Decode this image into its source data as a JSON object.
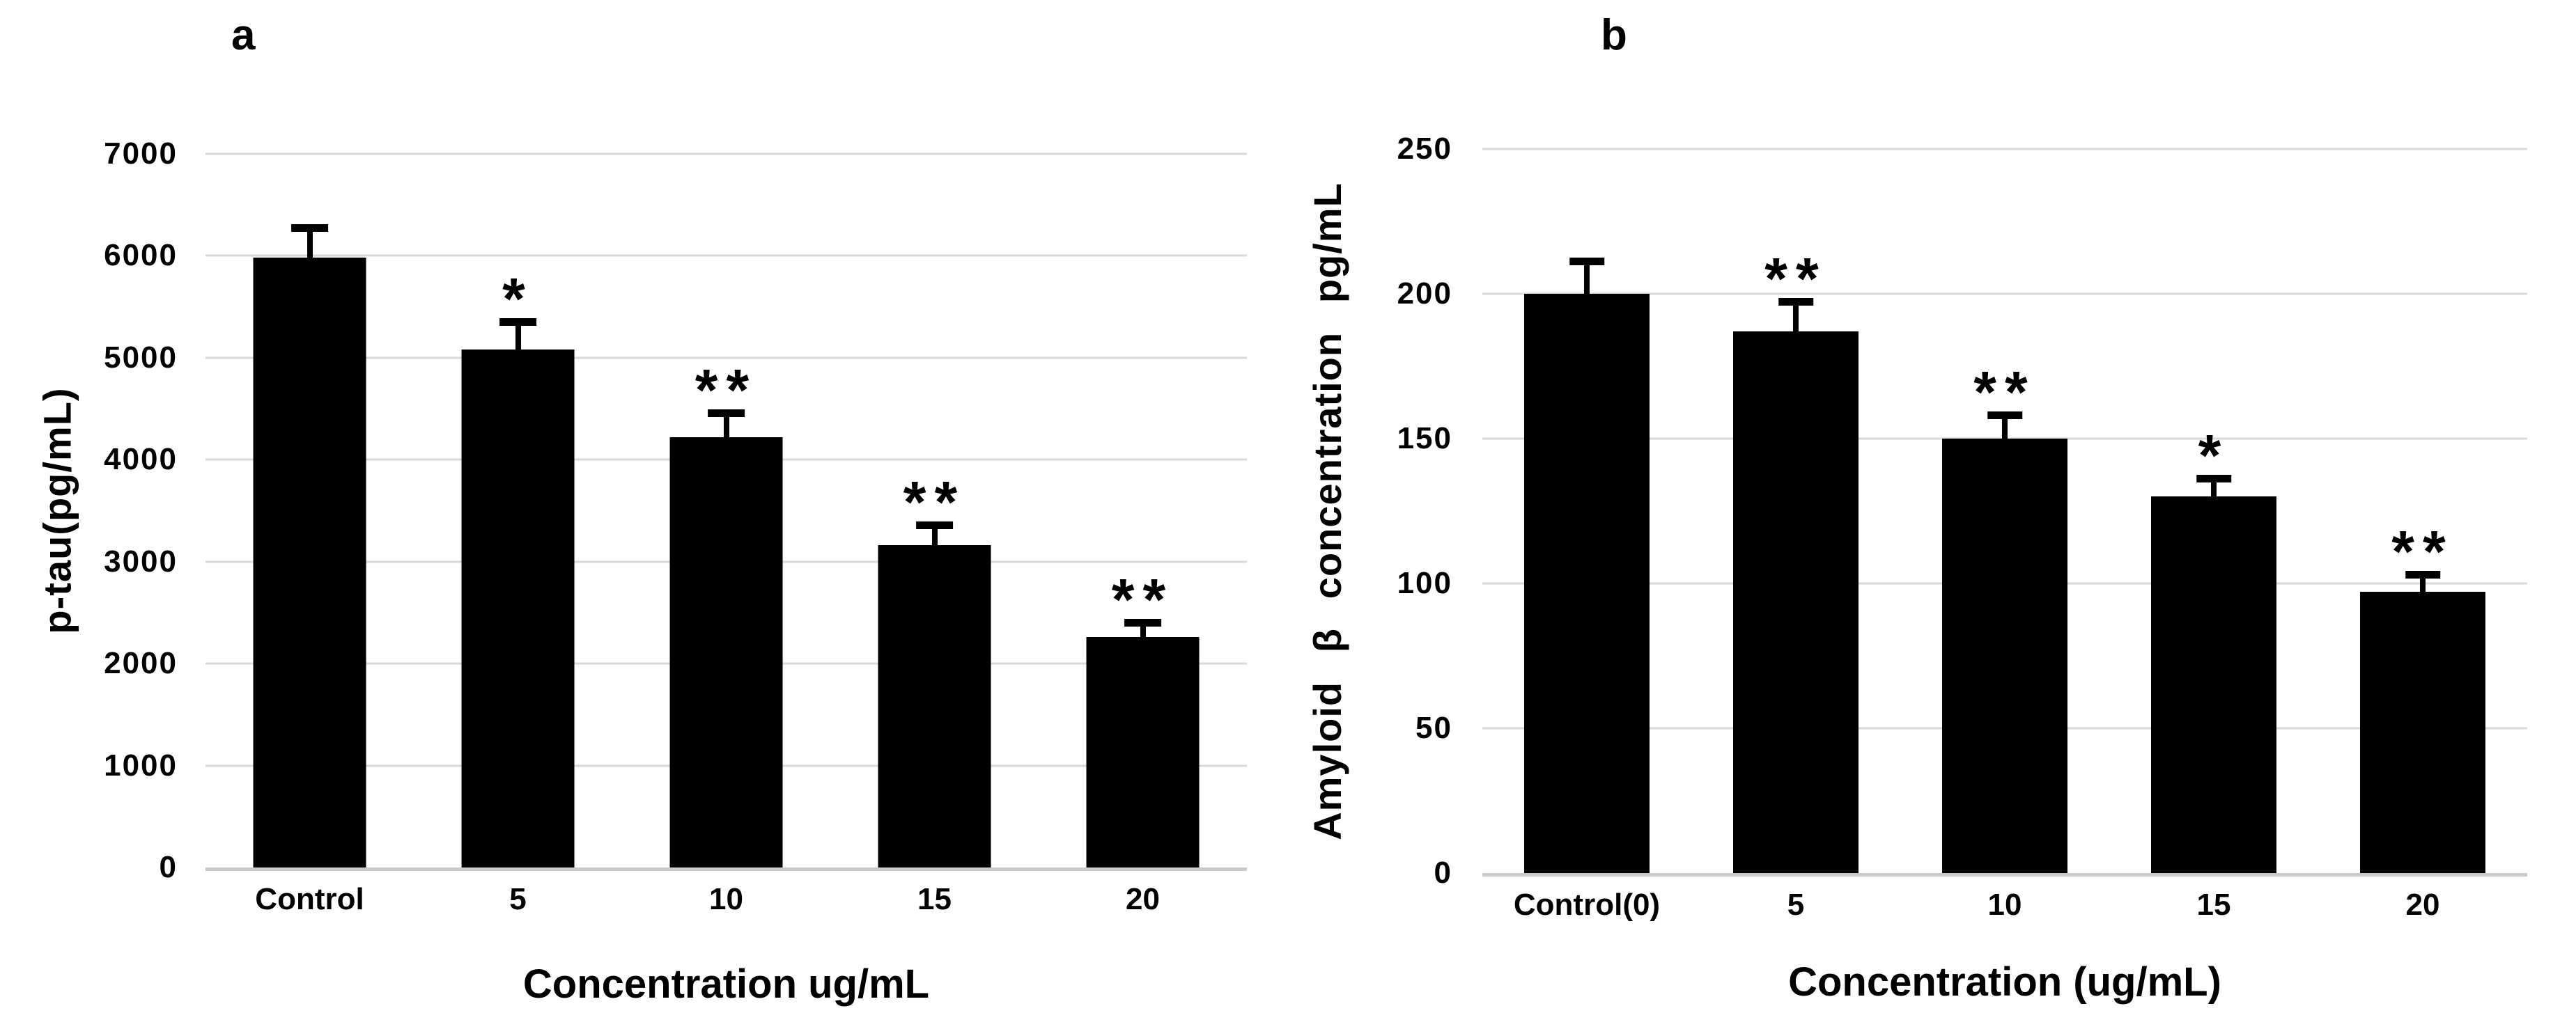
{
  "figure": {
    "background": "#ffffff",
    "bar_color": "#000000",
    "gridline_color": "#d9d9d9",
    "baseline_color": "#c9c9c9",
    "text_color": "#000000"
  },
  "chart_data": [
    {
      "type": "bar",
      "panel_label": "a",
      "title": "",
      "ylabel": "p-tau(pg/mL)",
      "xlabel": "Concentration ug/mL",
      "categories": [
        "Control",
        "5",
        "10",
        "15",
        "20"
      ],
      "values": [
        5980,
        5080,
        4220,
        3160,
        2260
      ],
      "error_up": [
        290,
        270,
        230,
        190,
        140
      ],
      "significance": [
        "",
        "*",
        "**",
        "**",
        "**"
      ],
      "ylim": [
        0,
        7000
      ],
      "ytick_step": 1000,
      "grid": true,
      "legend": false
    },
    {
      "type": "bar",
      "panel_label": "b",
      "title": "",
      "ylabel": "Amyloid β concentration pg/mL",
      "xlabel": "Concentration (ug/mL)",
      "categories": [
        "Control(0)",
        "5",
        "10",
        "15",
        "20"
      ],
      "values": [
        200,
        187,
        150,
        130,
        97
      ],
      "error_up": [
        11,
        10,
        8,
        6,
        6
      ],
      "significance": [
        "",
        "**",
        "**",
        "*",
        "**"
      ],
      "ylim": [
        0,
        250
      ],
      "ytick_step": 50,
      "grid": true,
      "legend": false
    }
  ]
}
